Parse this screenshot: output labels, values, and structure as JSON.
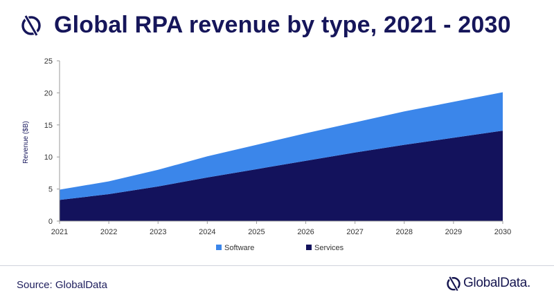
{
  "header": {
    "title": "Global RPA revenue by type, 2021 - 2030",
    "logo_icon": "globaldata-logo-icon"
  },
  "footer": {
    "source": "Source: GlobalData",
    "brand": "GlobalData.",
    "brand_icon": "globaldata-logo-icon"
  },
  "colors": {
    "title": "#16165a",
    "software": "#3b86ea",
    "services": "#13125c"
  },
  "chart_data": {
    "type": "area",
    "stacked": true,
    "title": "",
    "xlabel": "",
    "ylabel": "Revenue ($B)",
    "x": [
      "2021",
      "2022",
      "2023",
      "2024",
      "2025",
      "2026",
      "2027",
      "2028",
      "2029",
      "2030"
    ],
    "ylim": [
      0,
      25
    ],
    "yticks": [
      0,
      5,
      10,
      15,
      20,
      25
    ],
    "grid": false,
    "legend_position": "bottom",
    "series": [
      {
        "name": "Services",
        "values": [
          3.3,
          4.2,
          5.4,
          6.8,
          8.1,
          9.4,
          10.7,
          11.9,
          13.0,
          14.1
        ]
      },
      {
        "name": "Software",
        "values": [
          1.6,
          2.0,
          2.6,
          3.3,
          3.8,
          4.3,
          4.7,
          5.2,
          5.6,
          6.0
        ]
      }
    ],
    "legend": [
      "Software",
      "Services"
    ]
  }
}
